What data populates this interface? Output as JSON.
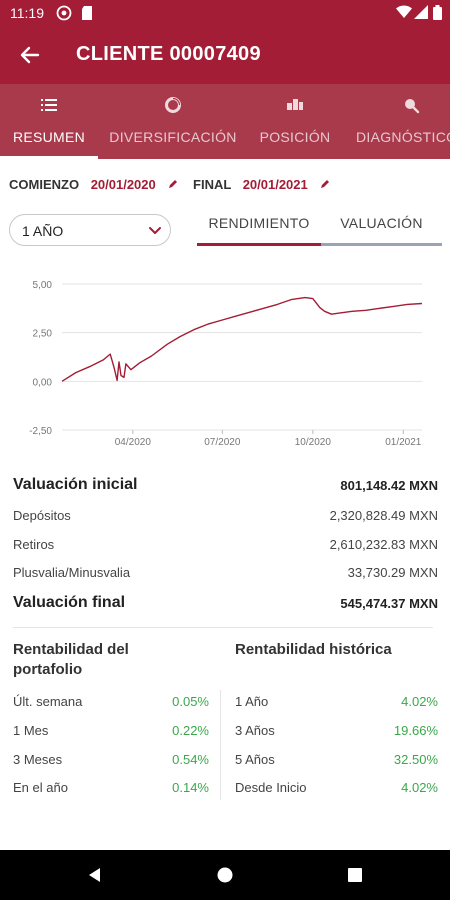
{
  "status": {
    "time": "11:19"
  },
  "appbar": {
    "title": "CLIENTE 00007409"
  },
  "tabs": [
    {
      "label": "RESUMEN",
      "icon": "list-icon",
      "active": true
    },
    {
      "label": "DIVERSIFICACIÓN",
      "icon": "donut-icon",
      "active": false
    },
    {
      "label": "POSICIÓN",
      "icon": "blocks-icon",
      "active": false
    },
    {
      "label": "DIAGNÓSTICO",
      "icon": "magnifier-icon",
      "active": false
    }
  ],
  "dates": {
    "start_label": "COMIENZO",
    "start_value": "20/01/2020",
    "end_label": "FINAL",
    "end_value": "20/01/2021"
  },
  "period_select": {
    "value": "1 AÑO"
  },
  "segments": {
    "rendimiento": "RENDIMIENTO",
    "valuacion": "VALUACIÓN"
  },
  "chart_data": {
    "type": "line",
    "y_ticks": [
      "5,00",
      "2,50",
      "0,00",
      "-2,50"
    ],
    "x_ticks": [
      "04/2020",
      "07/2020",
      "10/2020",
      "01/2021"
    ],
    "ylim": [
      -2.5,
      5
    ],
    "xlim": [
      "2020-01-20",
      "2021-01-20"
    ],
    "grid": true,
    "color": "#a31d36",
    "series": [
      {
        "x": [
          "2020-01-20",
          "2020-02-03",
          "2020-02-17",
          "2020-03-02",
          "2020-03-09",
          "2020-03-13",
          "2020-03-16",
          "2020-03-18",
          "2020-03-20",
          "2020-03-23",
          "2020-03-25",
          "2020-03-30",
          "2020-04-08",
          "2020-04-20",
          "2020-05-06",
          "2020-05-19",
          "2020-06-02",
          "2020-06-17",
          "2020-07-01",
          "2020-07-15",
          "2020-07-29",
          "2020-08-12",
          "2020-08-26",
          "2020-09-09",
          "2020-09-23",
          "2020-10-01",
          "2020-10-08",
          "2020-10-13",
          "2020-10-20",
          "2020-10-27",
          "2020-11-10",
          "2020-11-24",
          "2020-12-08",
          "2020-12-22",
          "2021-01-05",
          "2021-01-20"
        ],
        "y": [
          0.0,
          0.45,
          0.75,
          1.1,
          1.4,
          0.7,
          0.05,
          1.0,
          0.3,
          0.2,
          0.9,
          0.6,
          0.95,
          1.3,
          1.9,
          2.3,
          2.65,
          2.95,
          3.15,
          3.35,
          3.55,
          3.75,
          3.95,
          4.2,
          4.3,
          4.25,
          3.8,
          3.6,
          3.45,
          3.5,
          3.6,
          3.65,
          3.75,
          3.85,
          3.95,
          4.0
        ]
      }
    ]
  },
  "summary": {
    "valuacion_inicial_label": "Valuación inicial",
    "valuacion_inicial_value": "801,148.42 MXN",
    "depositos_label": "Depósitos",
    "depositos_value": "2,320,828.49 MXN",
    "retiros_label": "Retiros",
    "retiros_value": "2,610,232.83 MXN",
    "plusvalia_label": "Plusvalia/Minusvalia",
    "plusvalia_value": "33,730.29 MXN",
    "valuacion_final_label": "Valuación final",
    "valuacion_final_value": "545,474.37 MXN"
  },
  "rentabilidad_portafolio": {
    "title": "Rentabilidad del portafolio",
    "rows": [
      {
        "label": "Últ. semana",
        "value": "0.05%"
      },
      {
        "label": "1 Mes",
        "value": "0.22%"
      },
      {
        "label": "3 Meses",
        "value": "0.54%"
      },
      {
        "label": "En el año",
        "value": "0.14%"
      }
    ]
  },
  "rentabilidad_historica": {
    "title": "Rentabilidad histórica",
    "rows": [
      {
        "label": "1 Año",
        "value": "4.02%"
      },
      {
        "label": "3 Años",
        "value": "19.66%"
      },
      {
        "label": "5 Años",
        "value": "32.50%"
      },
      {
        "label": "Desde Inicio",
        "value": "4.02%"
      }
    ]
  }
}
